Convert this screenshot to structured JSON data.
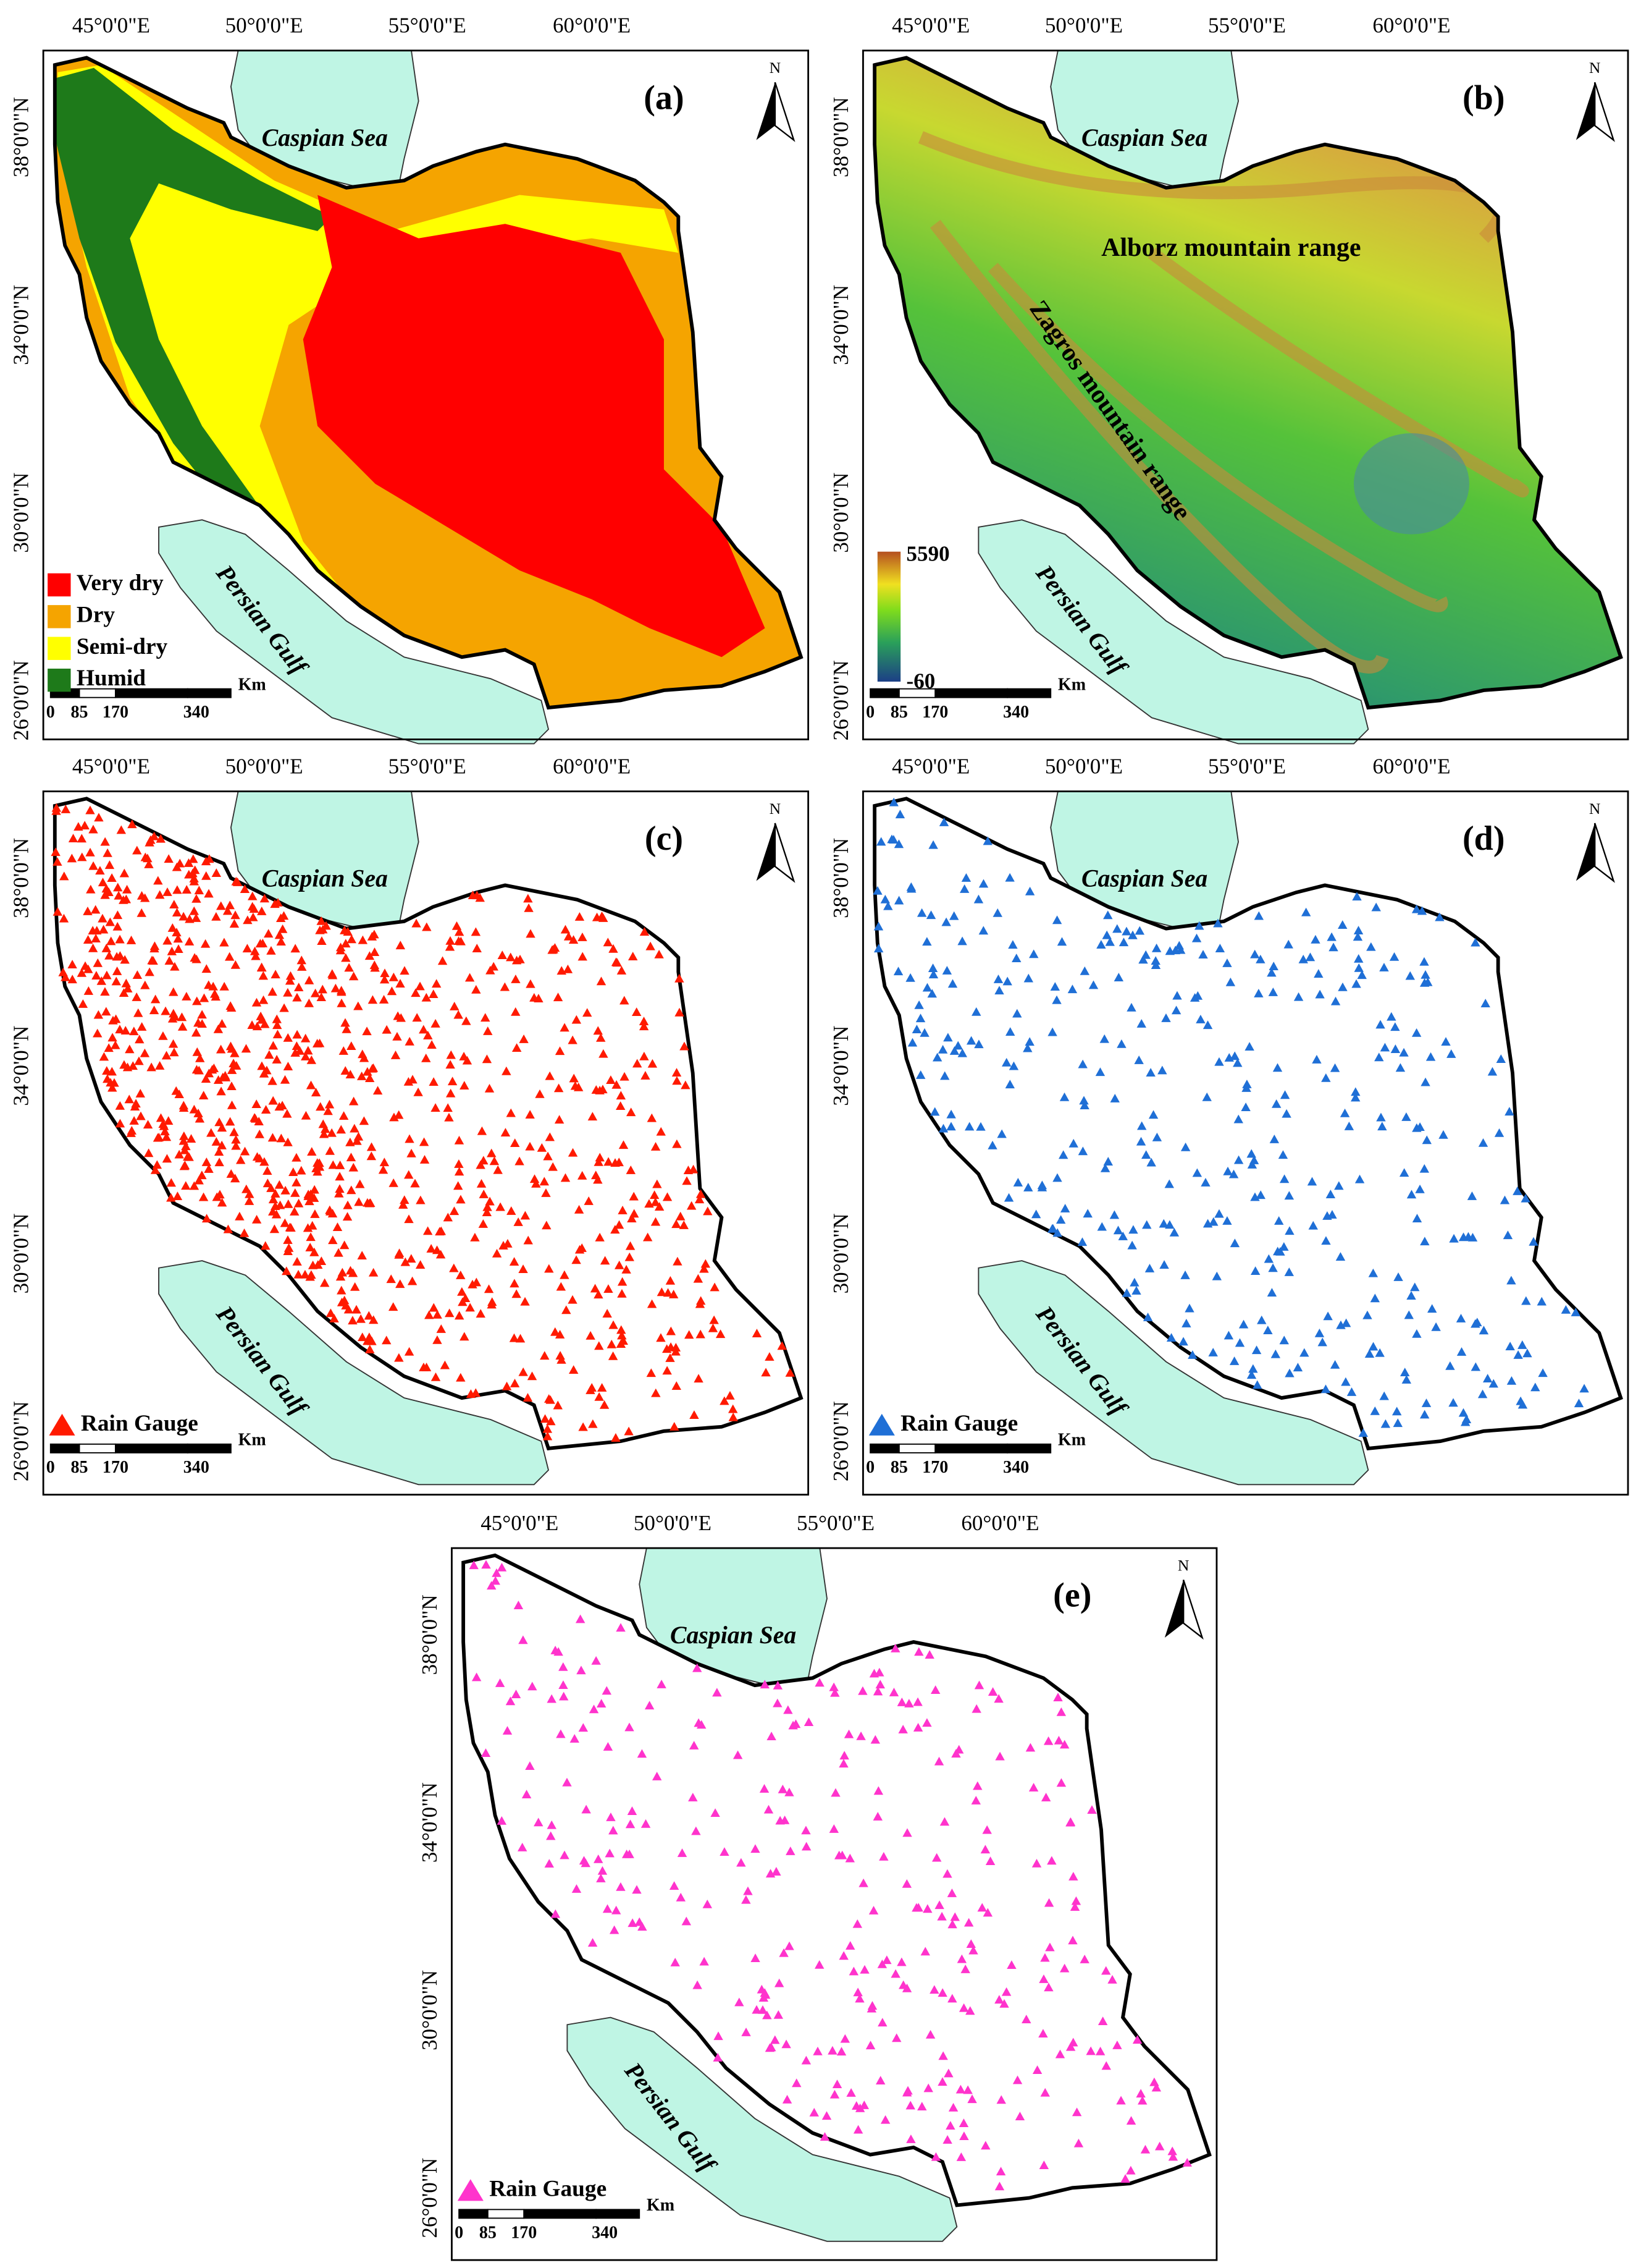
{
  "panels": [
    {
      "label": "(a)",
      "longitudes": [
        "45°0'0\"E",
        "50°0'0\"E",
        "55°0'0\"E",
        "60°0'0\"E"
      ],
      "latitudes": [
        "38°0'0\"N",
        "34°0'0\"N",
        "30°0'0\"N",
        "26°0'0\"N"
      ],
      "north": "N",
      "seas": [
        "Caspian Sea",
        "Persian Gulf"
      ],
      "legend": [
        {
          "name": "Very dry",
          "color": "#ff0000"
        },
        {
          "name": "Dry",
          "color": "#f5a400"
        },
        {
          "name": "Semi-dry",
          "color": "#ffff00"
        },
        {
          "name": "Humid",
          "color": "#1e7a1a"
        }
      ],
      "scale_bar": {
        "unit": "Km",
        "labels": [
          0,
          85,
          170,
          340
        ]
      }
    },
    {
      "label": "(b)",
      "longitudes": [
        "45°0'0\"E",
        "50°0'0\"E",
        "55°0'0\"E",
        "60°0'0\"E"
      ],
      "latitudes": [
        "38°0'0\"N",
        "34°0'0\"N",
        "30°0'0\"N",
        "26°0'0\"N"
      ],
      "north": "N",
      "seas": [
        "Caspian Sea",
        "Persian Gulf"
      ],
      "annotations": [
        "Alborz mountain range",
        "Zagros mountain range"
      ],
      "colorbar": {
        "max": 5590,
        "min": -60
      },
      "scale_bar": {
        "unit": "Km",
        "labels": [
          0,
          85,
          170,
          340
        ]
      }
    },
    {
      "label": "(c)",
      "longitudes": [
        "45°0'0\"E",
        "50°0'0\"E",
        "55°0'0\"E",
        "60°0'0\"E"
      ],
      "latitudes": [
        "38°0'0\"N",
        "34°0'0\"N",
        "30°0'0\"N",
        "26°0'0\"N"
      ],
      "north": "N",
      "seas": [
        "Caspian Sea",
        "Persian Gulf"
      ],
      "legend": [
        {
          "name": "Rain Gauge",
          "color": "#ff1a00"
        }
      ],
      "scale_bar": {
        "unit": "Km",
        "labels": [
          0,
          85,
          170,
          340
        ]
      }
    },
    {
      "label": "(d)",
      "longitudes": [
        "45°0'0\"E",
        "50°0'0\"E",
        "55°0'0\"E",
        "60°0'0\"E"
      ],
      "latitudes": [
        "38°0'0\"N",
        "34°0'0\"N",
        "30°0'0\"N",
        "26°0'0\"N"
      ],
      "north": "N",
      "seas": [
        "Caspian Sea",
        "Persian Gulf"
      ],
      "legend": [
        {
          "name": "Rain Gauge",
          "color": "#1f6fd6"
        }
      ],
      "scale_bar": {
        "unit": "Km",
        "labels": [
          0,
          85,
          170,
          340
        ]
      }
    },
    {
      "label": "(e)",
      "longitudes": [
        "45°0'0\"E",
        "50°0'0\"E",
        "55°0'0\"E",
        "60°0'0\"E"
      ],
      "latitudes": [
        "38°0'0\"N",
        "34°0'0\"N",
        "30°0'0\"N",
        "26°0'0\"N"
      ],
      "north": "N",
      "seas": [
        "Caspian Sea",
        "Persian Gulf"
      ],
      "legend": [
        {
          "name": "Rain Gauge",
          "color": "#ff33cc"
        }
      ],
      "scale_bar": {
        "unit": "Km",
        "labels": [
          0,
          85,
          170,
          340
        ]
      }
    }
  ]
}
